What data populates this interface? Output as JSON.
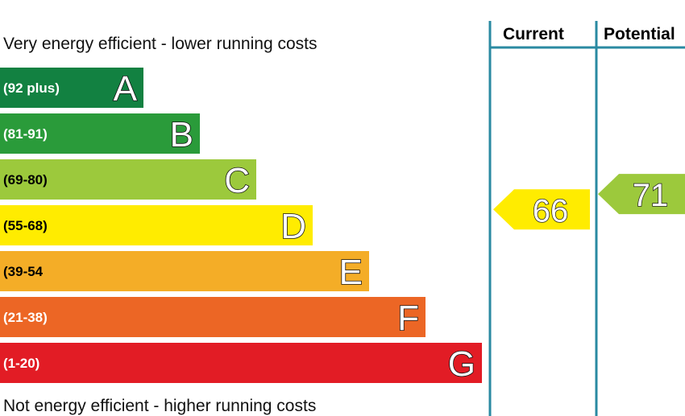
{
  "chart_data": {
    "type": "bar",
    "top_caption": "Very energy efficient - lower running costs",
    "bottom_caption": "Not energy efficient - higher running costs",
    "bands": [
      {
        "letter": "A",
        "range": "(92 plus)",
        "min": 92,
        "max": 100,
        "color": "#128141"
      },
      {
        "letter": "B",
        "range": "(81-91)",
        "min": 81,
        "max": 91,
        "color": "#2a9b3a"
      },
      {
        "letter": "C",
        "range": "(69-80)",
        "min": 69,
        "max": 80,
        "color": "#9cc93c"
      },
      {
        "letter": "D",
        "range": "(55-68)",
        "min": 55,
        "max": 68,
        "color": "#ffec00"
      },
      {
        "letter": "E",
        "range": "(39-54",
        "min": 39,
        "max": 54,
        "color": "#f4ad27"
      },
      {
        "letter": "F",
        "range": "(21-38)",
        "min": 21,
        "max": 38,
        "color": "#ec6625"
      },
      {
        "letter": "G",
        "range": "(1-20)",
        "min": 1,
        "max": 20,
        "color": "#e21c25"
      }
    ],
    "columns": [
      {
        "header": "Current",
        "value": 66,
        "band": "D",
        "color": "#ffec00"
      },
      {
        "header": "Potential",
        "value": 71,
        "band": "C",
        "color": "#9cc93c"
      }
    ],
    "colors": {
      "divider": "#2a8aa2",
      "label_text": "#000000"
    }
  }
}
